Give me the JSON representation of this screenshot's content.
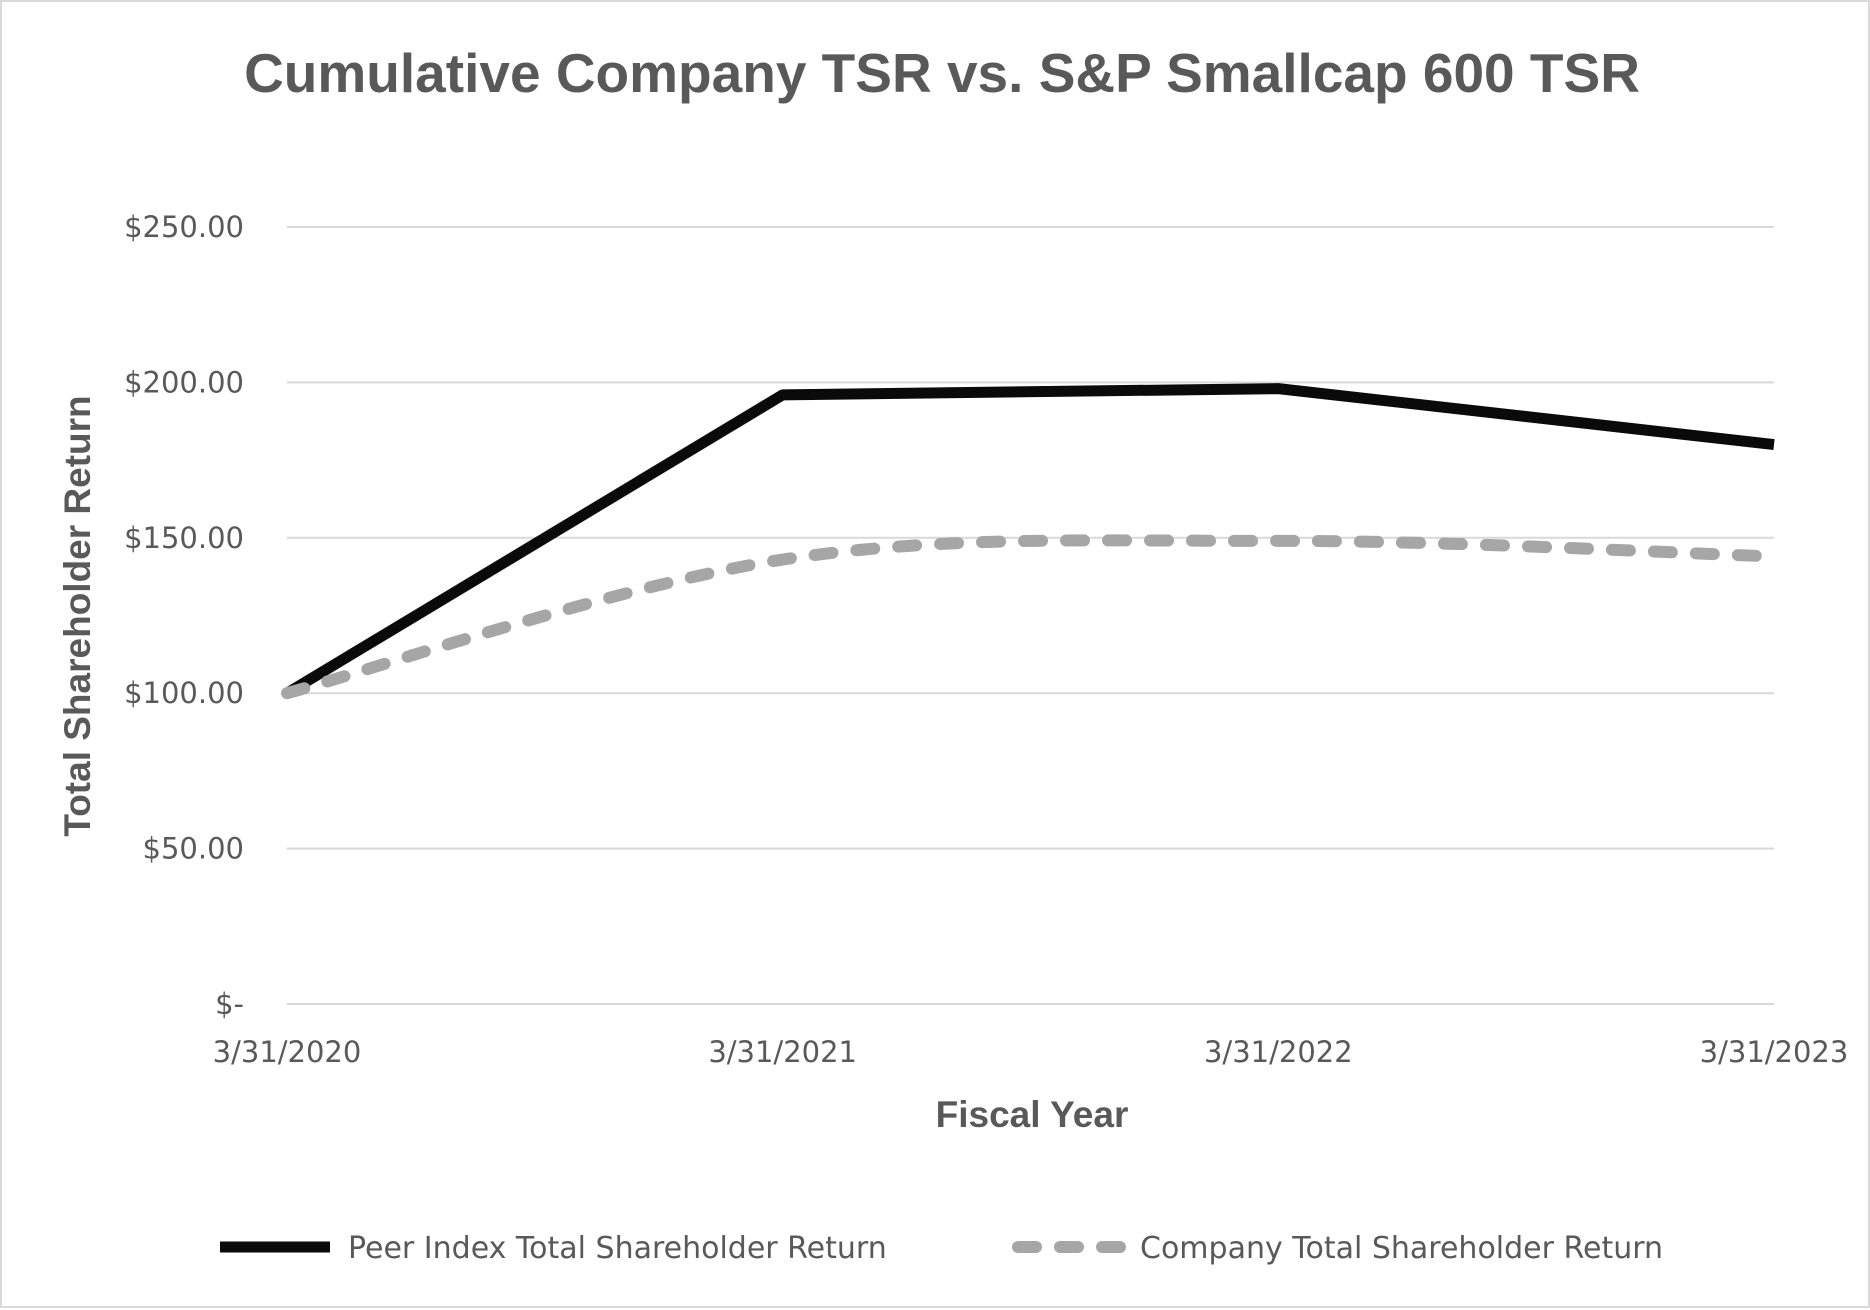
{
  "chart_data": {
    "type": "line",
    "title": "Cumulative Company TSR vs. S&P Smallcap 600 TSR",
    "xlabel": "Fiscal Year",
    "ylabel": "Total Shareholder Return",
    "categories": [
      "3/31/2020",
      "3/31/2021",
      "3/31/2022",
      "3/31/2023"
    ],
    "y_ticks": [
      {
        "value": 0,
        "label": "$-"
      },
      {
        "value": 50,
        "label": "$50.00"
      },
      {
        "value": 100,
        "label": "$100.00"
      },
      {
        "value": 150,
        "label": "$150.00"
      },
      {
        "value": 200,
        "label": "$200.00"
      },
      {
        "value": 250,
        "label": "$250.00"
      }
    ],
    "ylim": [
      0,
      250
    ],
    "grid": "horizontal",
    "legend": "bottom",
    "series": [
      {
        "name": "Peer Index Total Shareholder Return",
        "values": [
          100,
          196,
          198,
          180
        ],
        "color": "#0a0a0a",
        "style": "solid"
      },
      {
        "name": "Company Total Shareholder Return",
        "values": [
          100,
          143,
          149,
          144
        ],
        "color": "#a6a6a6",
        "style": "dashed",
        "smooth": true
      }
    ]
  }
}
